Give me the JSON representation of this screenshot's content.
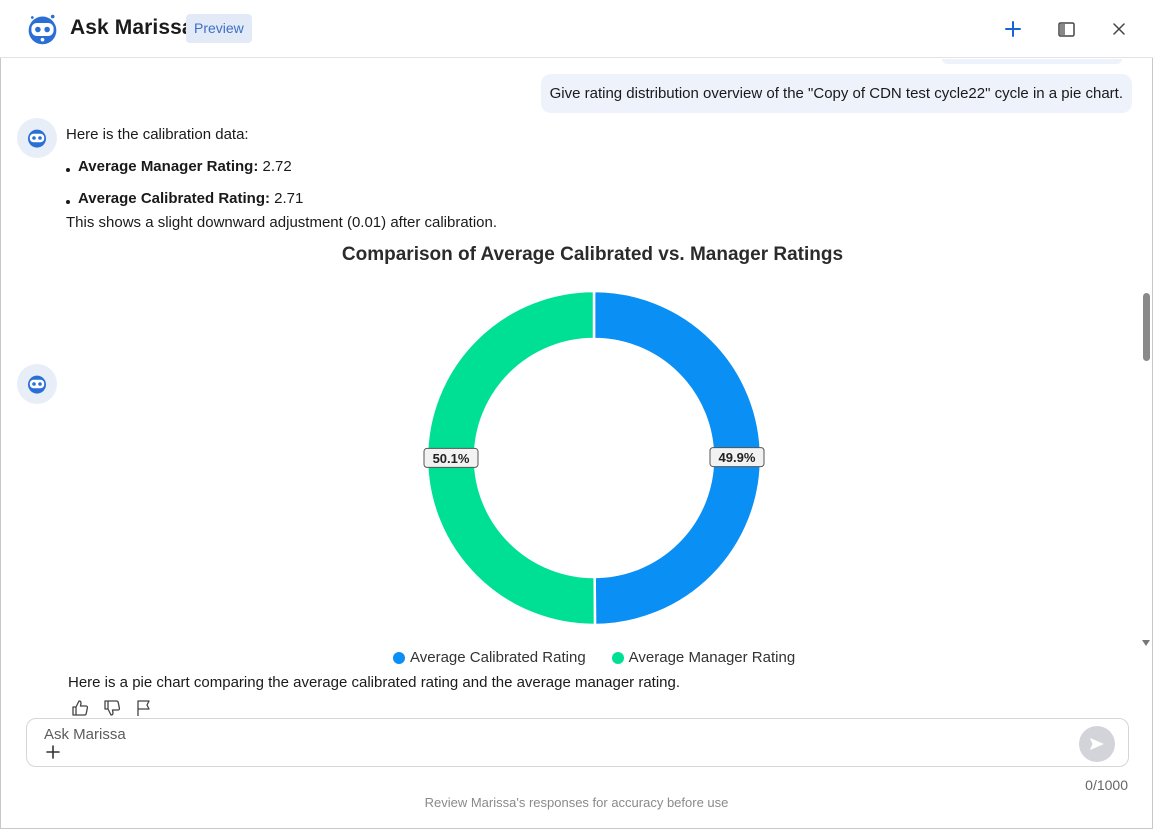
{
  "header": {
    "title": "Ask Marissa",
    "badge": "Preview",
    "icons": {
      "new": "plus-icon",
      "panel": "side-panel-icon",
      "close": "close-icon"
    }
  },
  "conversation": {
    "user_message": "Give rating distribution overview of the \"Copy of CDN test cycle22\" cycle in a pie chart.",
    "bot_intro": "Here is the calibration data:",
    "bullets": [
      {
        "label": "Average Manager Rating:",
        "value": "2.72"
      },
      {
        "label": "Average Calibrated Rating:",
        "value": "2.71"
      }
    ],
    "bot_summary": "This shows a slight downward adjustment (0.01) after calibration.",
    "chart_caption": "Here is a pie chart comparing the average calibrated rating and the average manager rating."
  },
  "chart_data": {
    "type": "pie",
    "title": "Comparison of Average Calibrated vs. Manager Ratings",
    "donut": true,
    "categories": [
      "Average Calibrated Rating",
      "Average Manager Rating"
    ],
    "values": [
      2.71,
      2.72
    ],
    "percent_labels": [
      "49.9%",
      "50.1%"
    ],
    "colors": [
      "#0a8ff5",
      "#00e094"
    ],
    "legend": "bottom"
  },
  "composer": {
    "placeholder": "Ask Marissa",
    "value": "",
    "counter": "0/1000"
  },
  "footer": {
    "disclaimer": "Review Marissa's responses for accuracy before use"
  },
  "colors": {
    "accent": "#1565d8",
    "badge_bg": "#e2eaf8",
    "bubble_bg": "#eef2fb"
  }
}
